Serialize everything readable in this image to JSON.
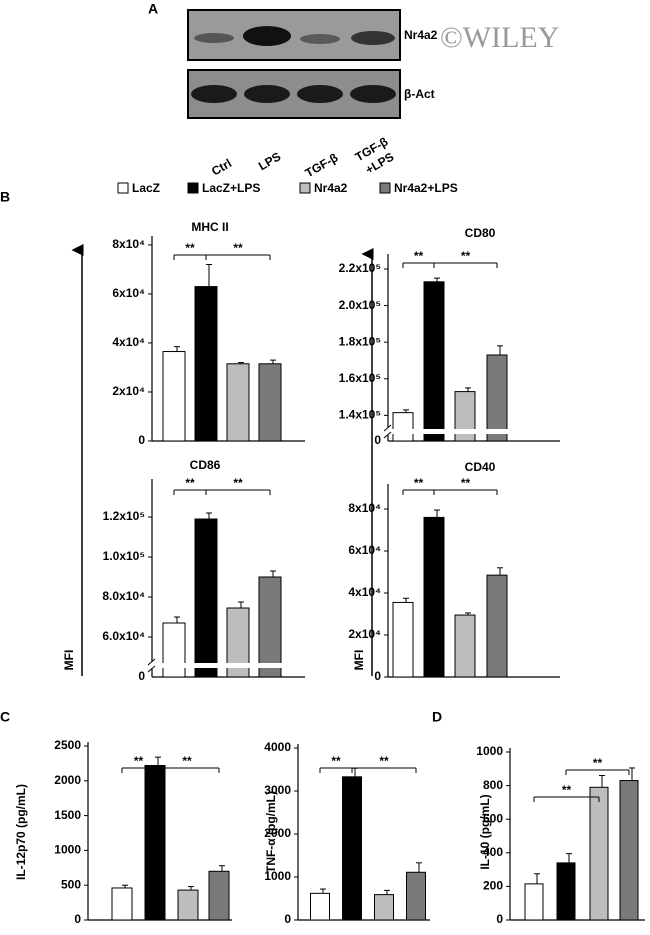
{
  "panels": [
    "A",
    "B",
    "C",
    "D"
  ],
  "blot": {
    "rows": [
      "Nr4a2",
      "β-Act"
    ],
    "lanes": [
      "Ctrl",
      "LPS",
      "TGF-β",
      [
        "TGF-β",
        "+LPS"
      ]
    ]
  },
  "watermark": "©WILEY",
  "legend": [
    {
      "name": "LacZ",
      "color": "#ffffff"
    },
    {
      "name": "LacZ+LPS",
      "color": "#000000"
    },
    {
      "name": "Nr4a2",
      "color": "#bdbdbd"
    },
    {
      "name": "Nr4a2+LPS",
      "color": "#7a7a7a"
    }
  ],
  "mfi_label": "MFI",
  "chart_data": [
    {
      "type": "bar",
      "title": "MHC II",
      "values": [
        36500,
        63000,
        31500,
        31500
      ],
      "errors": [
        2000,
        9000,
        500,
        1500
      ],
      "ylim": [
        0,
        82000
      ],
      "yticks": [
        0,
        {
          "value": 20000,
          "label": "2x10⁴"
        },
        {
          "value": 40000,
          "label": "4x10⁴"
        },
        {
          "value": 60000,
          "label": "6x10⁴"
        },
        {
          "value": 80000,
          "label": "8x10⁴"
        }
      ],
      "annotations": [
        "**",
        "**"
      ]
    },
    {
      "type": "bar",
      "title": "CD80",
      "values": [
        141500,
        213000,
        153000,
        173000
      ],
      "errors": [
        1500,
        2000,
        2000,
        5000
      ],
      "ylim": [
        126000,
        226000
      ],
      "yticks": [
        {
          "value": 140000,
          "label": "1.4x10⁵"
        },
        {
          "value": 160000,
          "label": "1.6x10⁵"
        },
        {
          "value": 180000,
          "label": "1.8x10⁵"
        },
        {
          "value": 200000,
          "label": "2.0x10⁵"
        },
        {
          "value": 220000,
          "label": "2.2x10⁵"
        }
      ],
      "axis_floor_label": "0",
      "broken_axis": true,
      "annotations": [
        "**",
        "**"
      ]
    },
    {
      "type": "bar",
      "title": "CD86",
      "values": [
        67000,
        119000,
        74500,
        90000
      ],
      "errors": [
        3000,
        3000,
        3000,
        3000
      ],
      "ylim": [
        40000,
        137000
      ],
      "yticks": [
        {
          "value": 60000,
          "label": "6.0x10⁴"
        },
        {
          "value": 80000,
          "label": "8.0x10⁴"
        },
        {
          "value": 100000,
          "label": "1.0x10⁵"
        },
        {
          "value": 120000,
          "label": "1.2x10⁵"
        }
      ],
      "axis_floor_label": "0",
      "broken_axis": true,
      "annotations": [
        "**",
        "**"
      ]
    },
    {
      "type": "bar",
      "title": "CD40",
      "values": [
        35500,
        76000,
        29500,
        48500
      ],
      "errors": [
        2000,
        3500,
        1000,
        3500
      ],
      "ylim": [
        0,
        90000
      ],
      "yticks": [
        0,
        {
          "value": 20000,
          "label": "2x10⁴"
        },
        {
          "value": 40000,
          "label": "4x10⁴"
        },
        {
          "value": 60000,
          "label": "6x10⁴"
        },
        {
          "value": 80000,
          "label": "8x10⁴"
        }
      ],
      "annotations": [
        "**",
        "**"
      ]
    },
    {
      "type": "bar",
      "ylabel": "IL-12p70 (pg/mL)",
      "values": [
        460,
        2220,
        430,
        700
      ],
      "errors": [
        40,
        120,
        50,
        80
      ],
      "ylim": [
        0,
        2500
      ],
      "yticks": [
        0,
        500,
        1000,
        1500,
        2000,
        2500
      ],
      "annotations": [
        "**",
        "**"
      ]
    },
    {
      "type": "bar",
      "ylabel": "TNF-α (pg/mL)",
      "values": [
        620,
        3330,
        590,
        1110
      ],
      "errors": [
        100,
        200,
        100,
        220
      ],
      "ylim": [
        0,
        4000
      ],
      "yticks": [
        0,
        1000,
        2000,
        3000,
        4000
      ],
      "annotations": [
        "**",
        "**"
      ]
    },
    {
      "type": "bar",
      "ylabel": "IL-10 (pg/mL)",
      "values": [
        215,
        340,
        790,
        830
      ],
      "errors": [
        60,
        55,
        70,
        75
      ],
      "ylim": [
        0,
        1000
      ],
      "yticks": [
        0,
        200,
        400,
        600,
        800,
        1000
      ],
      "annotations": [
        "**",
        "**"
      ]
    }
  ]
}
